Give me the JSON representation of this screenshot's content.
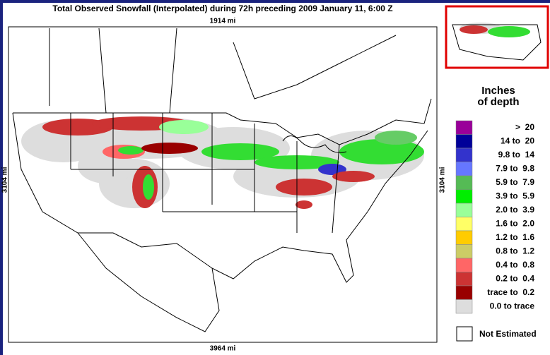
{
  "title": "Total Observed Snowfall (Interpolated) during 72h preceding 2009 January 11, 6:00 Z",
  "scale": {
    "top": "1914 mi",
    "bottom": "3964 mi",
    "left": "3104 mi",
    "right": "3104 mi"
  },
  "legend": {
    "title": [
      "Inches",
      "of depth"
    ],
    "items": [
      {
        "label": ">  20",
        "color": "#990099"
      },
      {
        "label": "14 to  20",
        "color": "#000099"
      },
      {
        "label": "9.8 to  14",
        "color": "#3333cc"
      },
      {
        "label": "7.9 to  9.8",
        "color": "#6677ff"
      },
      {
        "label": "5.9 to  7.9",
        "color": "#55bb55"
      },
      {
        "label": "3.9 to  5.9",
        "color": "#00ee00"
      },
      {
        "label": "2.0 to  3.9",
        "color": "#99ff99"
      },
      {
        "label": "1.6 to  2.0",
        "color": "#ffff66"
      },
      {
        "label": "1.2 to  1.6",
        "color": "#ffcc00"
      },
      {
        "label": "0.8 to  1.2",
        "color": "#cccc66"
      },
      {
        "label": "0.4 to  0.8",
        "color": "#ff6666"
      },
      {
        "label": "0.2 to  0.4",
        "color": "#cc3333"
      },
      {
        "label": "trace to  0.2",
        "color": "#990000"
      },
      {
        "label": "0.0 to trace",
        "color": "#dddddd"
      }
    ],
    "not_estimated": "Not Estimated"
  }
}
